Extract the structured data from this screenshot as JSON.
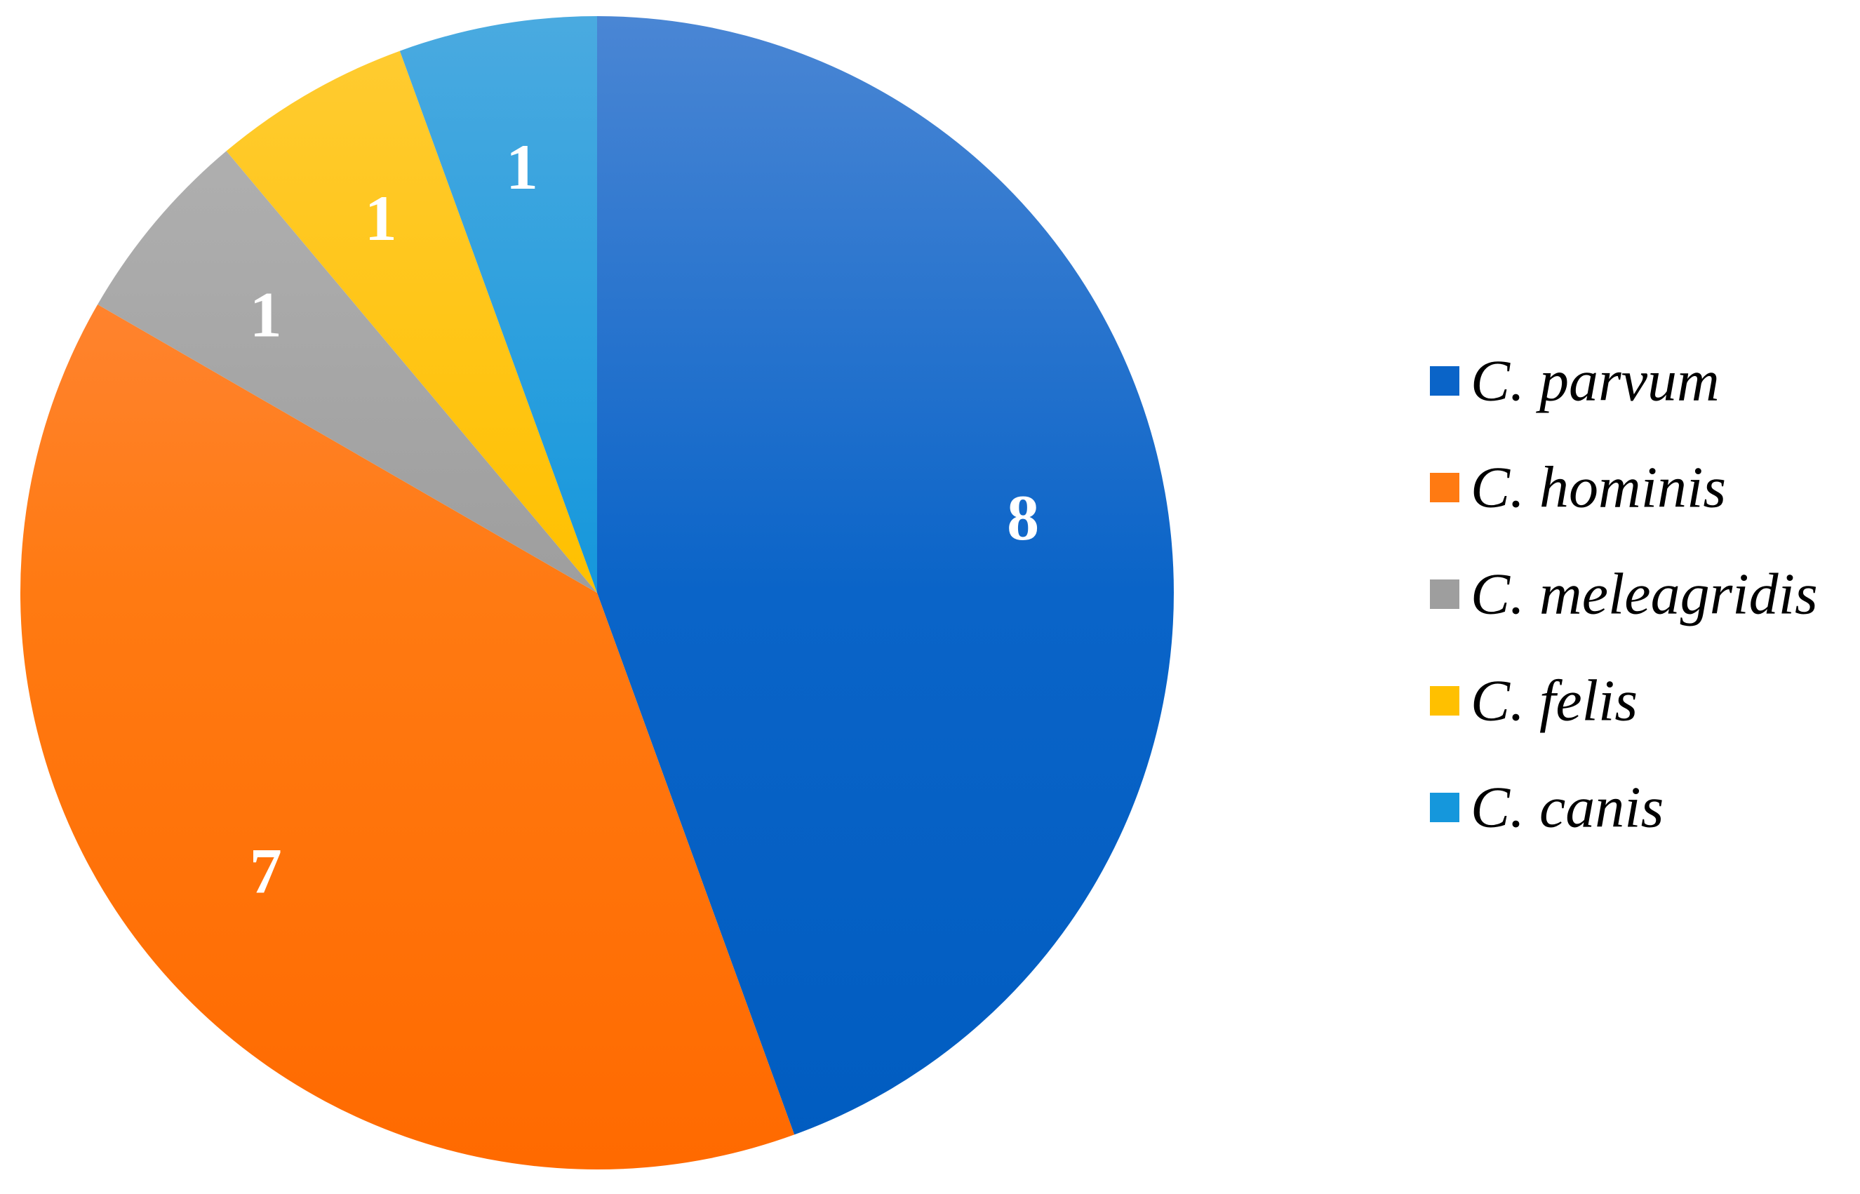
{
  "chart_data": {
    "type": "pie",
    "title": "",
    "start_angle_deg": 0,
    "direction": "clockwise",
    "legend_position": "right",
    "slices": [
      {
        "label": "C. parvum",
        "value": 8,
        "color": "#0a64c8",
        "color_light": "#4a86d4",
        "color_dark": "#005cc0"
      },
      {
        "label": "C. hominis",
        "value": 7,
        "color": "#ff7a12",
        "color_light": "#ff8c4a",
        "color_dark": "#ff6a00"
      },
      {
        "label": "C. meleagridis",
        "value": 1,
        "color": "#9e9e9e",
        "color_light": "#b4b4b4",
        "color_dark": "#8f8f8f"
      },
      {
        "label": "C. felis",
        "value": 1,
        "color": "#ffc000",
        "color_light": "#ffcc33",
        "color_dark": "#ffbf00"
      },
      {
        "label": "C. canis",
        "value": 1,
        "color": "#1597dc",
        "color_light": "#4aaae0",
        "color_dark": "#0090d8"
      }
    ]
  }
}
